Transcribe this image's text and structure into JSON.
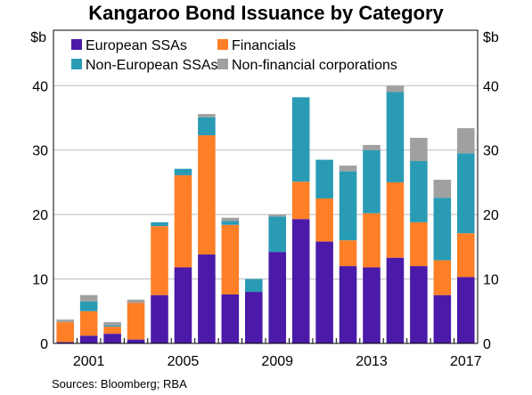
{
  "chart_data": {
    "type": "bar",
    "stacked": true,
    "title": "Kangaroo Bond Issuance by Category",
    "unit_left": "$b",
    "unit_right": "$b",
    "categories": [
      "2000",
      "2001",
      "2002",
      "2003",
      "2004",
      "2005",
      "2006",
      "2007",
      "2008",
      "2009",
      "2010",
      "2011",
      "2012",
      "2013",
      "2014",
      "2015",
      "2016",
      "2017"
    ],
    "x_tick_labels": [
      "2001",
      "2005",
      "2009",
      "2013",
      "2017"
    ],
    "ylim": [
      0,
      40
    ],
    "yticks": [
      0,
      10,
      20,
      30,
      40
    ],
    "grid": "horizontal",
    "legend_position": "top-left",
    "series": [
      {
        "name": "European SSAs",
        "color": "#4b1aa8",
        "values": [
          0.2,
          1.2,
          1.5,
          0.6,
          7.5,
          11.8,
          13.8,
          7.6,
          8.0,
          14.2,
          19.3,
          15.8,
          12.0,
          11.8,
          13.3,
          12.0,
          7.5,
          10.3
        ]
      },
      {
        "name": "Financials",
        "color": "#ff7f27",
        "values": [
          3.1,
          3.8,
          1.1,
          5.7,
          10.7,
          14.3,
          18.5,
          10.8,
          0.0,
          0.0,
          5.8,
          6.7,
          4.0,
          8.4,
          11.7,
          6.8,
          5.4,
          6.8
        ]
      },
      {
        "name": "Non-European SSAs",
        "color": "#2a9bb4",
        "values": [
          0.0,
          1.5,
          0.2,
          0.0,
          0.6,
          1.0,
          2.8,
          0.6,
          2.0,
          5.5,
          13.1,
          6.0,
          10.7,
          9.8,
          14.0,
          9.5,
          9.7,
          12.4
        ]
      },
      {
        "name": "Non-financial corporations",
        "color": "#a0a0a0",
        "values": [
          0.4,
          1.0,
          0.5,
          0.5,
          0.0,
          0.0,
          0.5,
          0.5,
          0.0,
          0.3,
          0.0,
          0.0,
          0.9,
          0.8,
          1.0,
          3.6,
          2.8,
          3.9
        ]
      }
    ],
    "legend_order": [
      "European SSAs",
      "Financials",
      "Non-European SSAs",
      "Non-financial corporations"
    ]
  },
  "source_text": "Sources:  Bloomberg; RBA"
}
